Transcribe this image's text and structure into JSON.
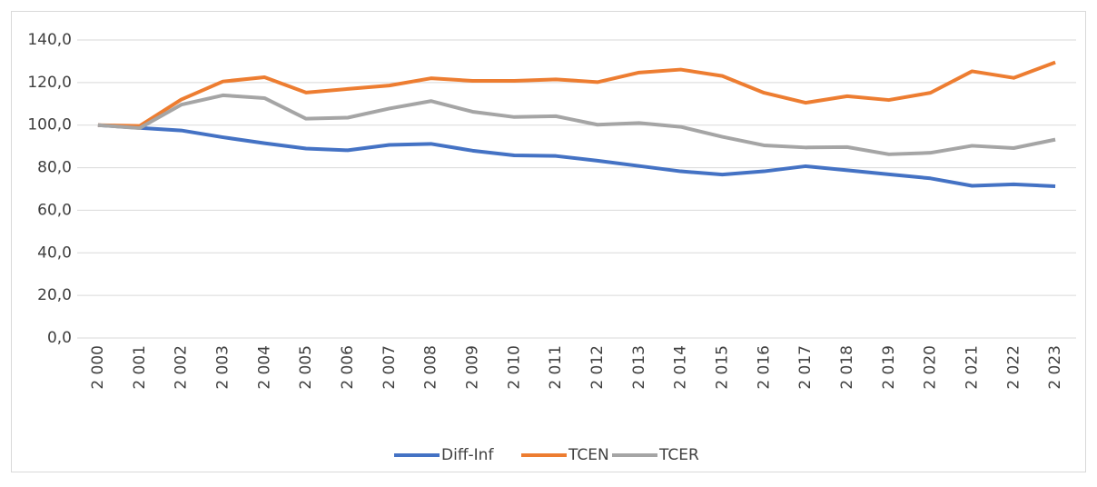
{
  "chart_data": {
    "type": "line",
    "categories": [
      "2 000",
      "2 001",
      "2 002",
      "2 003",
      "2 004",
      "2 005",
      "2 006",
      "2 007",
      "2 008",
      "2 009",
      "2 010",
      "2 011",
      "2 012",
      "2 013",
      "2 014",
      "2 015",
      "2 016",
      "2 017",
      "2 018",
      "2 019",
      "2 020",
      "2 021",
      "2 022",
      "2 023"
    ],
    "series": [
      {
        "name": "Diff-Inf",
        "color": "#4472c4",
        "values": [
          100,
          98.7,
          97.5,
          94.3,
          91.5,
          89,
          88.2,
          90.7,
          91.2,
          88,
          85.8,
          85.5,
          83.3,
          80.8,
          78.3,
          76.8,
          78.3,
          80.7,
          78.8,
          76.9,
          75,
          71.5,
          72.2,
          71.3
        ]
      },
      {
        "name": "TCEN",
        "color": "#ed7d31",
        "values": [
          100,
          99.6,
          112,
          120.5,
          122.5,
          115.3,
          117,
          118.6,
          122,
          120.8,
          120.8,
          121.5,
          120.2,
          124.7,
          126.1,
          123.1,
          115.2,
          110.5,
          113.6,
          111.8,
          115.2,
          125.3,
          122.2,
          129.5
        ]
      },
      {
        "name": "TCER",
        "color": "#a5a5a5",
        "values": [
          100,
          98.6,
          109.6,
          114,
          112.7,
          103,
          103.5,
          107.8,
          111.3,
          106.3,
          103.8,
          104.2,
          100.2,
          101,
          99.2,
          94.5,
          90.5,
          89.5,
          89.7,
          86.3,
          87,
          90.3,
          89.2,
          93.2
        ]
      }
    ],
    "ylim": [
      0,
      140
    ],
    "yticks": [
      {
        "value": 0,
        "label": "0,0"
      },
      {
        "value": 20,
        "label": "20,0"
      },
      {
        "value": 40,
        "label": "40,0"
      },
      {
        "value": 60,
        "label": "60,0"
      },
      {
        "value": 80,
        "label": "80,0"
      },
      {
        "value": 100,
        "label": "100,0"
      },
      {
        "value": 120,
        "label": "120,0"
      },
      {
        "value": 140,
        "label": "140,0"
      }
    ],
    "grid": true,
    "legend": "bottom"
  }
}
